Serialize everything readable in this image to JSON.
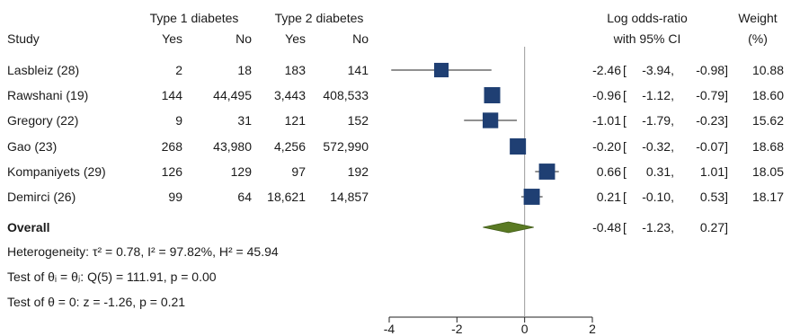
{
  "header": {
    "group1_label": "Type 1 diabetes",
    "group2_label": "Type 2 diabetes",
    "study_label": "Study",
    "yes_label": "Yes",
    "no_label": "No",
    "effect_label_line1": "Log odds-ratio",
    "effect_label_line2": "with 95% CI",
    "weight_label_line1": "Weight",
    "weight_label_line2": "(%)"
  },
  "rows": [
    {
      "study": "Lasbleiz (28)",
      "t1_yes": "2",
      "t1_no": "18",
      "t2_yes": "183",
      "t2_no": "141",
      "est_text": "-2.46",
      "lo_text": "-3.94,",
      "hi_text": "-0.98]",
      "weight": "10.88"
    },
    {
      "study": "Rawshani (19)",
      "t1_yes": "144",
      "t1_no": "44,495",
      "t2_yes": "3,443",
      "t2_no": "408,533",
      "est_text": "-0.96",
      "lo_text": "-1.12,",
      "hi_text": "-0.79]",
      "weight": "18.60"
    },
    {
      "study": "Gregory (22)",
      "t1_yes": "9",
      "t1_no": "31",
      "t2_yes": "121",
      "t2_no": "152",
      "est_text": "-1.01",
      "lo_text": "-1.79,",
      "hi_text": "-0.23]",
      "weight": "15.62"
    },
    {
      "study": "Gao (23)",
      "t1_yes": "268",
      "t1_no": "43,980",
      "t2_yes": "4,256",
      "t2_no": "572,990",
      "est_text": "-0.20",
      "lo_text": "-0.32,",
      "hi_text": "-0.07]",
      "weight": "18.68"
    },
    {
      "study": "Kompaniyets (29)",
      "t1_yes": "126",
      "t1_no": "129",
      "t2_yes": "97",
      "t2_no": "192",
      "est_text": "0.66",
      "lo_text": "0.31,",
      "hi_text": "1.01]",
      "weight": "18.05"
    },
    {
      "study": "Demirci (26)",
      "t1_yes": "99",
      "t1_no": "64",
      "t2_yes": "18,621",
      "t2_no": "14,857",
      "est_text": "0.21",
      "lo_text": "-0.10,",
      "hi_text": "0.53]",
      "weight": "18.17"
    }
  ],
  "overall": {
    "label": "Overall",
    "est_text": "-0.48",
    "lo_text": "-1.23,",
    "hi_text": "0.27]"
  },
  "notes": {
    "heterogeneity": "Heterogeneity: τ² = 0.78, I² = 97.82%, H² = 45.94",
    "test_equal": "Test of θᵢ = θⱼ: Q(5) = 111.91, p = 0.00",
    "test_zero": "Test of θ = 0: z = -1.26, p = 0.21"
  },
  "colors": {
    "marker": "#1f3f73",
    "overall": "#5a7a23",
    "line": "#222222",
    "refline": "#9a9a9a"
  },
  "chart_data": {
    "type": "forest",
    "x_ticks": [
      -4,
      -2,
      0,
      2
    ],
    "x_tick_labels": [
      "-4",
      "-2",
      "0",
      "2"
    ],
    "xlim": [
      -4,
      2
    ],
    "reference_line": 0,
    "studies": [
      {
        "name": "Lasbleiz (28)",
        "estimate": -2.46,
        "ci_low": -3.94,
        "ci_high": -0.98,
        "weight": 10.88
      },
      {
        "name": "Rawshani (19)",
        "estimate": -0.96,
        "ci_low": -1.12,
        "ci_high": -0.79,
        "weight": 18.6
      },
      {
        "name": "Gregory (22)",
        "estimate": -1.01,
        "ci_low": -1.79,
        "ci_high": -0.23,
        "weight": 15.62
      },
      {
        "name": "Gao (23)",
        "estimate": -0.2,
        "ci_low": -0.32,
        "ci_high": -0.07,
        "weight": 18.68
      },
      {
        "name": "Kompaniyets (29)",
        "estimate": 0.66,
        "ci_low": 0.31,
        "ci_high": 1.01,
        "weight": 18.05
      },
      {
        "name": "Demirci (26)",
        "estimate": 0.21,
        "ci_low": -0.1,
        "ci_high": 0.53,
        "weight": 18.17
      }
    ],
    "overall": {
      "estimate": -0.48,
      "ci_low": -1.23,
      "ci_high": 0.27
    }
  }
}
